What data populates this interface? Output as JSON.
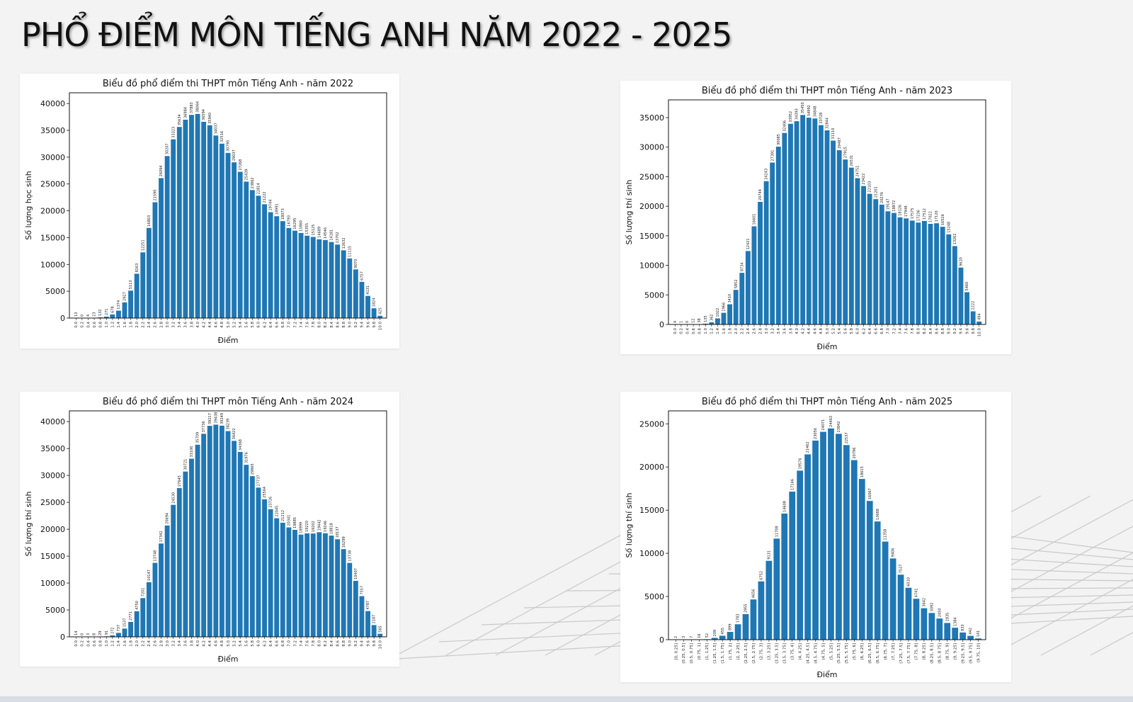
{
  "title": "PHỔ ĐIỂM MÔN TIẾNG ANH NĂM 2022 - 2025",
  "colors": {
    "bar": "#1f77b4",
    "background": "#f3f3f3",
    "panel": "#ffffff"
  },
  "chart_data": [
    {
      "type": "bar",
      "title": "Biểu đồ phổ điểm thi THPT môn Tiếng Anh - năm 2022",
      "xlabel": "Điểm",
      "ylabel": "Số lượng học sinh",
      "ylim": [
        0,
        42000
      ],
      "yticks": [
        0,
        5000,
        10000,
        15000,
        20000,
        25000,
        30000,
        35000,
        40000
      ],
      "grid": false,
      "categories": [
        "0.0",
        "0.2",
        "0.4",
        "0.6",
        "0.8",
        "1.0",
        "1.2",
        "1.4",
        "1.6",
        "1.8",
        "2.0",
        "2.2",
        "2.4",
        "2.6",
        "2.8",
        "3.0",
        "3.2",
        "3.4",
        "3.6",
        "3.8",
        "4.0",
        "4.2",
        "4.4",
        "4.6",
        "4.8",
        "5.0",
        "5.2",
        "5.4",
        "5.6",
        "5.8",
        "6.0",
        "6.2",
        "6.4",
        "6.6",
        "6.8",
        "7.0",
        "7.2",
        "7.4",
        "7.6",
        "7.8",
        "8.0",
        "8.2",
        "8.4",
        "8.6",
        "8.8",
        "9.0",
        "9.2",
        "9.4",
        "9.6",
        "9.8",
        "10.0"
      ],
      "values": [
        13,
        0,
        4,
        23,
        132,
        271,
        678,
        1374,
        2927,
        5113,
        8263,
        12251,
        16803,
        21590,
        26094,
        30207,
        33323,
        35634,
        36984,
        37883,
        38064,
        36594,
        35940,
        34037,
        32516,
        30790,
        29037,
        27268,
        25439,
        23862,
        22814,
        21222,
        19744,
        18991,
        18073,
        16793,
        16295,
        15860,
        15355,
        15125,
        14689,
        14546,
        14181,
        13702,
        12632,
        11115,
        9070,
        6757,
        4131,
        1824,
        425
      ]
    },
    {
      "type": "bar",
      "title": "Biểu đồ phổ điểm thi THPT môn Tiếng Anh - năm 2023",
      "xlabel": "Điểm",
      "ylabel": "Số lượng thí sinh",
      "ylim": [
        0,
        38000
      ],
      "yticks": [
        0,
        5000,
        10000,
        15000,
        20000,
        25000,
        30000,
        35000
      ],
      "grid": false,
      "categories": [
        "0.0",
        "0.2",
        "0.4",
        "0.6",
        "0.8",
        "1.0",
        "1.2",
        "1.4",
        "1.6",
        "1.8",
        "2.0",
        "2.2",
        "2.4",
        "2.6",
        "2.8",
        "3.0",
        "3.2",
        "3.4",
        "3.6",
        "3.8",
        "4.0",
        "4.2",
        "4.4",
        "4.6",
        "4.8",
        "5.0",
        "5.2",
        "5.4",
        "5.6",
        "5.8",
        "6.0",
        "6.2",
        "6.4",
        "6.6",
        "6.8",
        "7.0",
        "7.2",
        "7.4",
        "7.6",
        "7.8",
        "8.0",
        "8.2",
        "8.4",
        "8.6",
        "8.8",
        "9.0",
        "9.2",
        "9.4",
        "9.6",
        "9.8",
        "10.0"
      ],
      "values": [
        4,
        1,
        0,
        12,
        38,
        135,
        362,
        1022,
        1966,
        3410,
        5852,
        8734,
        12421,
        16601,
        20744,
        24243,
        27391,
        30085,
        32406,
        33952,
        34393,
        35450,
        34992,
        34848,
        33728,
        32844,
        31110,
        29487,
        27915,
        26531,
        24751,
        23422,
        22103,
        21201,
        20276,
        19147,
        18872,
        18126,
        17948,
        17575,
        17236,
        17512,
        17022,
        17120,
        16526,
        15248,
        13262,
        9620,
        5460,
        2222,
        494
      ]
    },
    {
      "type": "bar",
      "title": "Biểu đồ phổ điểm thi THPT môn Tiếng Anh - năm 2024",
      "xlabel": "Điểm",
      "ylabel": "Số lượng thí sinh",
      "ylim": [
        0,
        42000
      ],
      "yticks": [
        0,
        5000,
        10000,
        15000,
        20000,
        25000,
        30000,
        35000,
        40000
      ],
      "grid": false,
      "categories": [
        "0.0",
        "0.2",
        "0.4",
        "0.6",
        "0.8",
        "1.0",
        "1.2",
        "1.4",
        "1.6",
        "1.8",
        "2.0",
        "2.2",
        "2.4",
        "2.6",
        "2.8",
        "3.0",
        "3.2",
        "3.4",
        "3.6",
        "3.8",
        "4.0",
        "4.2",
        "4.4",
        "4.6",
        "4.8",
        "5.0",
        "5.2",
        "5.4",
        "5.6",
        "5.8",
        "6.0",
        "6.2",
        "6.4",
        "6.6",
        "6.8",
        "7.0",
        "7.2",
        "7.4",
        "7.6",
        "7.8",
        "8.0",
        "8.2",
        "8.4",
        "8.6",
        "8.8",
        "9.0",
        "9.2",
        "9.4",
        "9.6",
        "9.8",
        "10.0"
      ],
      "values": [
        14,
        0,
        3,
        8,
        29,
        91,
        272,
        737,
        1537,
        2771,
        4750,
        7201,
        10147,
        13748,
        17342,
        20694,
        24530,
        27645,
        30721,
        33106,
        35709,
        37736,
        39217,
        39438,
        39249,
        38239,
        36422,
        34368,
        31976,
        29865,
        27737,
        25564,
        23726,
        22045,
        21212,
        20341,
        19885,
        18999,
        19220,
        19202,
        19442,
        19246,
        18818,
        18137,
        16299,
        13738,
        10407,
        7557,
        4787,
        2187,
        565
      ]
    },
    {
      "type": "bar",
      "title": "Biểu đồ phổ điểm thi THPT môn Tiếng Anh - năm 2025",
      "xlabel": "Điểm",
      "ylabel": "Số lượng thí sinh",
      "ylim": [
        0,
        26500
      ],
      "yticks": [
        0,
        5000,
        10000,
        15000,
        20000,
        25000
      ],
      "grid": false,
      "categories": [
        "[0, 0.25]",
        "(0.25, 0.5]",
        "(0.5, 0.75]",
        "(0.75, 1]",
        "(1, 1.25]",
        "(1.25, 1.5]",
        "(1.5, 1.75]",
        "(1.75, 2]",
        "(2, 2.25]",
        "(2.25, 2.5]",
        "(2.5, 2.75]",
        "(2.75, 3]",
        "(3, 3.25]",
        "(3.25, 3.5]",
        "(3.5, 3.75]",
        "(3.75, 4]",
        "(4, 4.25]",
        "(4.25, 4.5]",
        "(4.5, 4.75]",
        "(4.75, 5]",
        "(5, 5.25]",
        "(5.25, 5.5]",
        "(5.5, 5.75]",
        "(5.75, 6]",
        "(6, 6.25]",
        "(6.25, 6.5]",
        "(6.5, 6.75]",
        "(6.75, 7]",
        "(7, 7.25]",
        "(7.25, 7.5]",
        "(7.5, 7.75]",
        "(7.75, 8]",
        "(8, 8.25]",
        "(8.25, 8.5]",
        "(8.5, 8.75]",
        "(8.75, 9]",
        "(9, 9.25]",
        "(9.25, 9.5]",
        "(9.5, 9.75]",
        "(9.75, 10]"
      ],
      "values": [
        2,
        3,
        7,
        16,
        52,
        209,
        455,
        899,
        1783,
        2955,
        4656,
        6752,
        9131,
        11708,
        14608,
        17146,
        19576,
        21462,
        23056,
        24071,
        24463,
        23842,
        22537,
        20796,
        18615,
        16067,
        13688,
        11358,
        9406,
        7527,
        6010,
        4741,
        3642,
        3092,
        2450,
        1935,
        1384,
        833,
        442,
        141
      ]
    }
  ]
}
